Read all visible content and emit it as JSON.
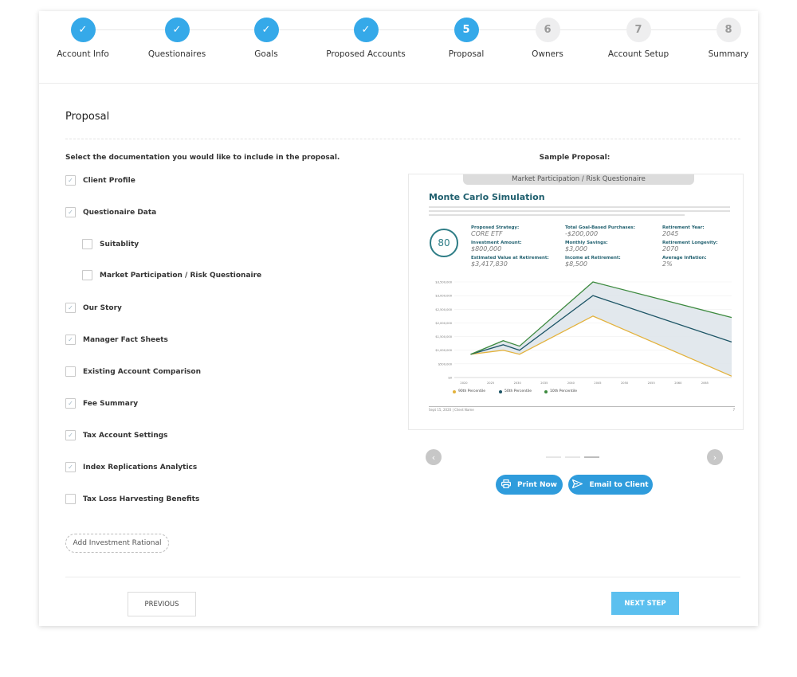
{
  "steps": [
    {
      "num": "1",
      "label": "Account Info",
      "status": "done"
    },
    {
      "num": "2",
      "label": "Questionaires",
      "status": "done"
    },
    {
      "num": "3",
      "label": "Goals",
      "status": "done"
    },
    {
      "num": "4",
      "label": "Proposed Accounts",
      "status": "done"
    },
    {
      "num": "5",
      "label": "Proposal",
      "status": "active"
    },
    {
      "num": "6",
      "label": "Owners",
      "status": "pending"
    },
    {
      "num": "7",
      "label": "Account Setup",
      "status": "pending"
    },
    {
      "num": "8",
      "label": "Summary",
      "status": "pending"
    }
  ],
  "check_glyph": "✓",
  "page_title": "Proposal",
  "instructions": "Select the documentation you would like to include in the proposal.",
  "options": [
    {
      "label": "Client Profile",
      "checked": true
    },
    {
      "label": "Questionaire Data",
      "checked": true
    },
    {
      "label": "Suitablity",
      "checked": false
    },
    {
      "label": "Market Participation / Risk Questionaire",
      "checked": false
    },
    {
      "label": "Our Story",
      "checked": true
    },
    {
      "label": "Manager Fact Sheets",
      "checked": true
    },
    {
      "label": "Existing Account Comparison",
      "checked": false
    },
    {
      "label": "Fee Summary",
      "checked": true
    },
    {
      "label": "Tax Account Settings",
      "checked": true
    },
    {
      "label": "Index Replications Analytics",
      "checked": true
    },
    {
      "label": "Tax Loss Harvesting Benefits",
      "checked": false
    }
  ],
  "add_rational_label": "Add Investment Rational",
  "sample_label": "Sample Proposal:",
  "preview": {
    "tab_label": "Market Participation / Risk Questionaire",
    "title": "Monte Carlo Simulation",
    "badge": "80",
    "stats": [
      {
        "k": "Proposed Strategy:",
        "v": "CORE ETF"
      },
      {
        "k": "Total Goal-Based Purchases:",
        "v": "-$200,000"
      },
      {
        "k": "Retirement Year:",
        "v": "2045"
      },
      {
        "k": "Investment Amount:",
        "v": "$800,000"
      },
      {
        "k": "Monthly Savings:",
        "v": "$3,000"
      },
      {
        "k": "Retirement Longevity:",
        "v": "2070"
      },
      {
        "k": "Estimated Value at Retirement:",
        "v": "$3,417,830"
      },
      {
        "k": "Income at Retirement:",
        "v": "$8,500"
      },
      {
        "k": "Average Inflation:",
        "v": "2%"
      }
    ],
    "legend": [
      "90th Percentile",
      "50th Percentile",
      "10th Percentile"
    ],
    "footer_left": "Sept 15, 2020 | Client Name",
    "footer_right": "7"
  },
  "chart_data": {
    "type": "line",
    "x": [
      2020,
      2024,
      2026,
      2035,
      2052
    ],
    "xticks": [
      "2020",
      "2025",
      "2030",
      "2035",
      "2040",
      "2045",
      "2050",
      "2055",
      "2060",
      "2065"
    ],
    "yticks": [
      "$3,500,000",
      "$3,000,000",
      "$2,500,000",
      "$2,000,000",
      "$1,500,000",
      "$1,000,000",
      "$500,000",
      "$0"
    ],
    "ylim": [
      0,
      3500000
    ],
    "series": [
      {
        "name": "90th Percentile",
        "color": "#e3b23c",
        "values": [
          850000,
          1000000,
          850000,
          2250000,
          50000
        ]
      },
      {
        "name": "50th Percentile",
        "color": "#1d5566",
        "values": [
          850000,
          1200000,
          1000000,
          3000000,
          1300000
        ]
      },
      {
        "name": "10th Percentile",
        "color": "#3d8a3f",
        "values": [
          850000,
          1350000,
          1150000,
          3500000,
          2200000
        ]
      }
    ]
  },
  "nav": {
    "prev_glyph": "‹",
    "next_glyph": "›"
  },
  "print_label": "Print Now",
  "email_label": "Email to Client",
  "previous_label": "PREVIOUS",
  "next_label": "NEXT STEP",
  "colors": {
    "accent": "#35a9e9",
    "button": "#2f9cdc",
    "next": "#5cc0ef"
  }
}
